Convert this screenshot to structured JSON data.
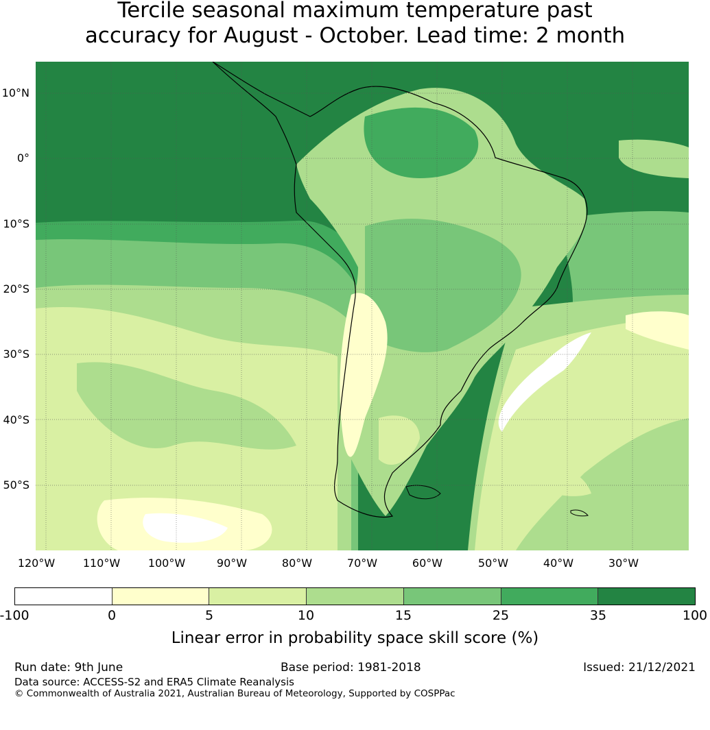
{
  "title": {
    "line1": "Tercile seasonal maximum temperature past",
    "line2": "accuracy for August - October. Lead time: 2 month"
  },
  "map": {
    "lat_labels": [
      "10°N",
      "0°",
      "10°S",
      "20°S",
      "30°S",
      "40°S",
      "50°S"
    ],
    "lon_labels": [
      "120°W",
      "110°W",
      "100°W",
      "90°W",
      "80°W",
      "70°W",
      "60°W",
      "50°W",
      "40°W",
      "30°W"
    ],
    "gridlines": true
  },
  "colorbar": {
    "ticks": [
      "-100",
      "0",
      "5",
      "10",
      "15",
      "25",
      "35",
      "100"
    ],
    "colors": [
      "#ffffff",
      "#ffffcc",
      "#d9f0a3",
      "#addd8e",
      "#78c679",
      "#41ab5d",
      "#238443"
    ],
    "label": "Linear error in probability space skill score (%)"
  },
  "footer": {
    "run_date": "Run date: 9th June",
    "base_period": "Base period: 1981-2018",
    "issued": "Issued: 21/12/2021",
    "data_source": "Data source: ACCESS-S2 and ERA5 Climate Reanalysis",
    "copyright": "© Commonwealth of Australia 2021, Australian Bureau of Meteorology, Supported by COSPPac"
  }
}
